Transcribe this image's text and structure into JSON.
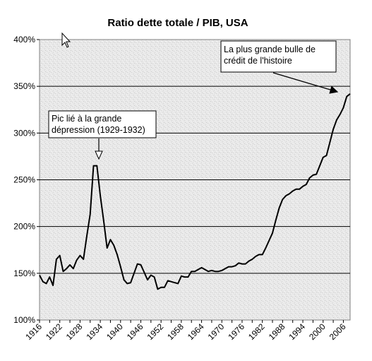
{
  "chart_data": {
    "type": "line",
    "title": "Ratio dette totale / PIB, USA",
    "xlabel": "",
    "ylabel": "",
    "xlim": [
      1916,
      2008
    ],
    "ylim": [
      100,
      400
    ],
    "yticks": [
      100,
      150,
      200,
      250,
      300,
      350,
      400
    ],
    "ytick_labels": [
      "100%",
      "150%",
      "200%",
      "250%",
      "300%",
      "350%",
      "400%"
    ],
    "xticks": [
      1916,
      1922,
      1928,
      1934,
      1940,
      1946,
      1952,
      1958,
      1964,
      1970,
      1976,
      1982,
      1988,
      1994,
      2000,
      2006
    ],
    "xtick_labels": [
      "1916",
      "1922",
      "1928",
      "1934",
      "1940",
      "1946",
      "1952",
      "1958",
      "1964",
      "1970",
      "1976",
      "1982",
      "1988",
      "1994",
      "2000",
      "2006"
    ],
    "grid": "horizontal",
    "legend": "none",
    "series": [
      {
        "color": "#000000",
        "x": [
          1916,
          1917,
          1918,
          1919,
          1920,
          1921,
          1922,
          1923,
          1924,
          1925,
          1926,
          1927,
          1928,
          1929,
          1930,
          1931,
          1932,
          1933,
          1934,
          1935,
          1936,
          1937,
          1938,
          1939,
          1940,
          1941,
          1942,
          1943,
          1944,
          1945,
          1946,
          1947,
          1948,
          1949,
          1950,
          1951,
          1952,
          1953,
          1954,
          1955,
          1956,
          1957,
          1958,
          1959,
          1960,
          1961,
          1962,
          1963,
          1964,
          1965,
          1966,
          1967,
          1968,
          1969,
          1970,
          1971,
          1972,
          1973,
          1974,
          1975,
          1976,
          1977,
          1978,
          1979,
          1980,
          1981,
          1982,
          1983,
          1984,
          1985,
          1986,
          1987,
          1988,
          1989,
          1990,
          1991,
          1992,
          1993,
          1994,
          1995,
          1996,
          1997,
          1998,
          1999,
          2000,
          2001,
          2002,
          2003,
          2004,
          2005,
          2006,
          2007,
          2008
        ],
        "values": [
          148,
          141,
          139,
          146,
          137,
          165,
          169,
          152,
          155,
          159,
          155,
          164,
          169,
          165,
          190,
          213,
          265,
          265,
          233,
          206,
          177,
          186,
          180,
          170,
          157,
          143,
          139,
          140,
          150,
          160,
          159,
          151,
          143,
          148,
          146,
          133,
          135,
          135,
          142,
          141,
          140,
          139,
          147,
          146,
          146,
          152,
          152,
          154,
          156,
          154,
          152,
          153,
          152,
          152,
          153,
          155,
          157,
          157,
          158,
          161,
          160,
          160,
          163,
          165,
          168,
          170,
          170,
          177,
          185,
          193,
          207,
          220,
          229,
          233,
          235,
          238,
          240,
          240,
          243,
          245,
          252,
          255,
          256,
          265,
          274,
          276,
          290,
          304,
          314,
          320,
          327,
          339,
          342
        ]
      }
    ],
    "annotations": [
      {
        "lines": [
          "Pic lié à la grande",
          "dépression (1929-1932)"
        ],
        "target": [
          1933,
          265
        ]
      },
      {
        "lines": [
          "La plus grande bulle de",
          "crédit de l'histoire"
        ],
        "target": [
          2007,
          340
        ]
      }
    ]
  }
}
